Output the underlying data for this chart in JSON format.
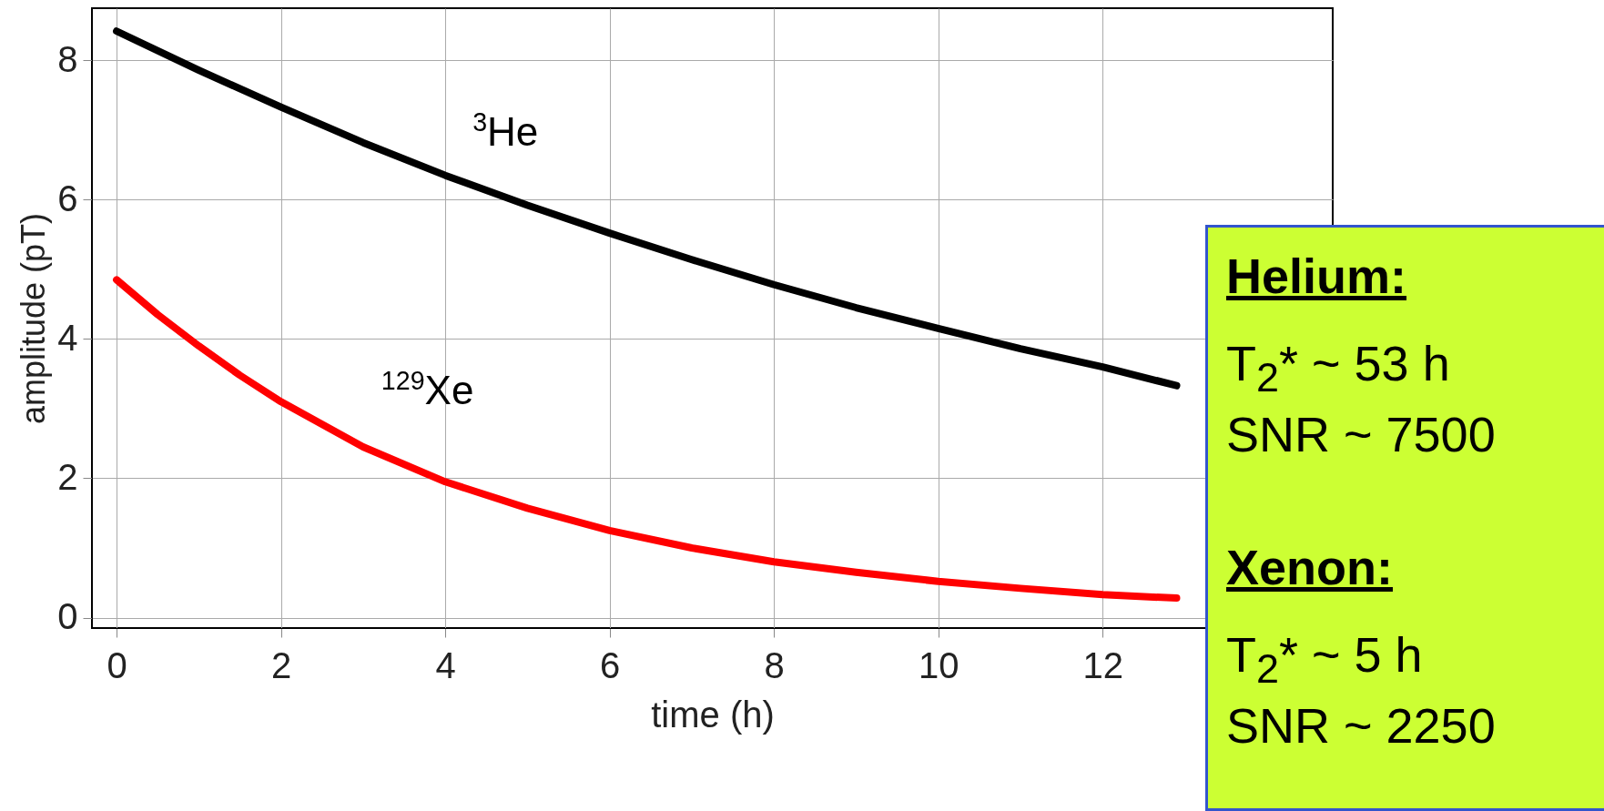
{
  "chart_data": {
    "type": "line",
    "xlabel": "time (h)",
    "ylabel": "amplitude (pT)",
    "xlim": [
      -0.3,
      14.8
    ],
    "ylim": [
      -0.15,
      8.75
    ],
    "xticks": [
      0,
      2,
      4,
      6,
      8,
      10,
      12
    ],
    "yticks": [
      0,
      2,
      4,
      6,
      8
    ],
    "grid": true,
    "line_style": "solid",
    "series": [
      {
        "name": "$^{3}$He",
        "color": "#000000",
        "x": [
          0,
          1,
          2,
          3,
          4,
          5,
          6,
          7,
          8,
          9,
          10,
          11,
          12,
          12.9
        ],
        "values": [
          8.42,
          7.86,
          7.33,
          6.82,
          6.35,
          5.92,
          5.52,
          5.14,
          4.78,
          4.45,
          4.15,
          3.86,
          3.6,
          3.33
        ]
      },
      {
        "name": "$^{129}$Xe",
        "color": "#ff0000",
        "x": [
          0,
          0.5,
          1,
          1.5,
          2,
          3,
          4,
          5,
          6,
          7,
          8,
          9,
          10,
          11,
          12,
          12.9
        ],
        "values": [
          4.85,
          4.35,
          3.9,
          3.48,
          3.1,
          2.45,
          1.95,
          1.57,
          1.25,
          1.0,
          0.8,
          0.65,
          0.52,
          0.42,
          0.33,
          0.28
        ]
      }
    ],
    "annotations": [
      "Helium:",
      "T$_{2}$*  ~  53 h",
      "SNR ~ 7500",
      "Xenon:",
      "T$_{2}$*  ~ 5 h",
      "SNR ~ 2250"
    ]
  }
}
